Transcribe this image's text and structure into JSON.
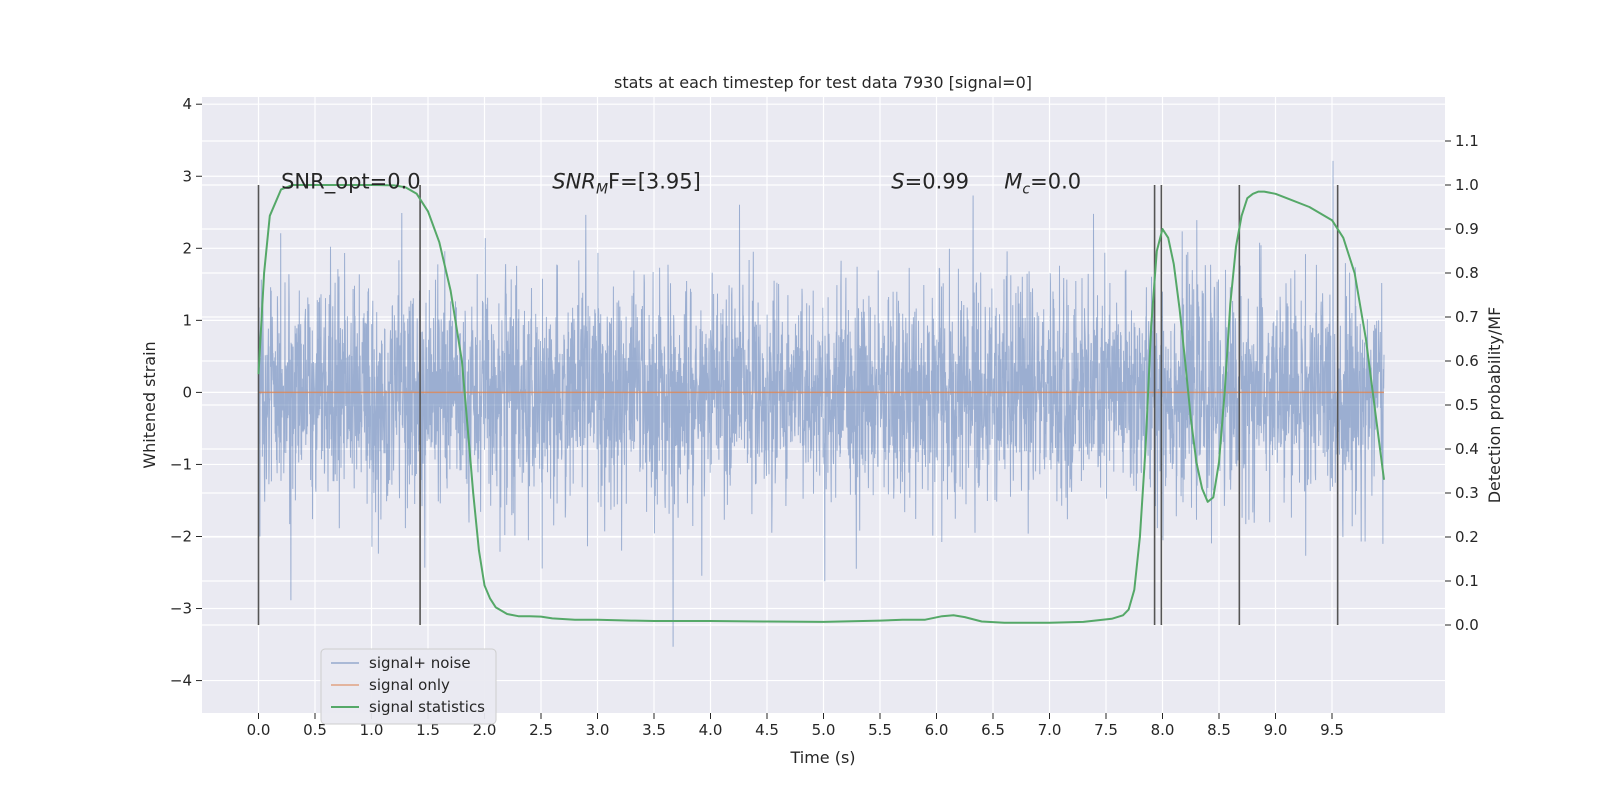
{
  "chart_data": {
    "type": "line",
    "title": "stats at each timestep for test data 7930 [signal=0]",
    "xlabel": "Time (s)",
    "ylabel": "Whitened strain",
    "y2label": "Detection probability/MF",
    "xlim": [
      -0.5,
      10.5
    ],
    "ylim": [
      -4.45,
      4.1
    ],
    "y2lim": [
      -0.2,
      1.2
    ],
    "x_ticks": [
      0.0,
      0.5,
      1.0,
      1.5,
      2.0,
      2.5,
      3.0,
      3.5,
      4.0,
      4.5,
      5.0,
      5.5,
      6.0,
      6.5,
      7.0,
      7.5,
      8.0,
      8.5,
      9.0,
      9.5
    ],
    "x_tick_labels": [
      "0.0",
      "0.5",
      "1.0",
      "1.5",
      "2.0",
      "2.5",
      "3.0",
      "3.5",
      "4.0",
      "4.5",
      "5.0",
      "5.5",
      "6.0",
      "6.5",
      "7.0",
      "7.5",
      "8.0",
      "8.5",
      "9.0",
      "9.5"
    ],
    "y_ticks": [
      4,
      3,
      2,
      1,
      0,
      -1,
      -2,
      -3,
      -4
    ],
    "y_tick_labels": [
      "4",
      "3",
      "2",
      "1",
      "0",
      "−1",
      "−2",
      "−3",
      "−4"
    ],
    "y2_ticks": [
      1.1,
      1.0,
      0.9,
      0.8,
      0.7,
      0.6,
      0.5,
      0.4,
      0.3,
      0.2,
      0.1,
      0.0
    ],
    "y2_tick_labels": [
      "1.1",
      "1.0",
      "0.9",
      "0.8",
      "0.7",
      "0.6",
      "0.5",
      "0.4",
      "0.3",
      "0.2",
      "0.1",
      "0.0"
    ],
    "grid": true,
    "legend_position": "bottom-left",
    "series": [
      {
        "name": "signal+ noise",
        "color": "#4c72b0",
        "axis": "left",
        "kind": "noise",
        "x_range": [
          0.0,
          9.96
        ],
        "approx_std": 0.75
      },
      {
        "name": "signal only",
        "color": "#dd8452",
        "axis": "left",
        "x": [
          0.0,
          9.96
        ],
        "y": [
          0.0,
          0.0
        ]
      },
      {
        "name": "signal statistics",
        "color": "#55a868",
        "axis": "right",
        "x": [
          0.0,
          0.05,
          0.1,
          0.2,
          0.3,
          0.5,
          0.8,
          1.0,
          1.2,
          1.3,
          1.4,
          1.5,
          1.6,
          1.7,
          1.8,
          1.85,
          1.9,
          1.95,
          2.0,
          2.05,
          2.1,
          2.2,
          2.3,
          2.4,
          2.5,
          2.6,
          2.8,
          3.0,
          3.3,
          3.5,
          4.0,
          4.5,
          5.0,
          5.5,
          5.7,
          5.9,
          6.05,
          6.15,
          6.25,
          6.4,
          6.6,
          7.0,
          7.3,
          7.55,
          7.65,
          7.7,
          7.75,
          7.8,
          7.85,
          7.9,
          7.95,
          8.0,
          8.05,
          8.1,
          8.15,
          8.2,
          8.25,
          8.3,
          8.35,
          8.4,
          8.45,
          8.5,
          8.55,
          8.6,
          8.65,
          8.7,
          8.75,
          8.8,
          8.85,
          8.9,
          9.0,
          9.1,
          9.3,
          9.5,
          9.6,
          9.7,
          9.8,
          9.9,
          9.96
        ],
        "y": [
          0.57,
          0.8,
          0.93,
          0.99,
          1.0,
          1.0,
          1.0,
          1.0,
          0.999,
          0.995,
          0.98,
          0.94,
          0.87,
          0.76,
          0.6,
          0.45,
          0.3,
          0.17,
          0.09,
          0.06,
          0.04,
          0.025,
          0.02,
          0.02,
          0.019,
          0.015,
          0.012,
          0.012,
          0.01,
          0.009,
          0.009,
          0.008,
          0.007,
          0.01,
          0.012,
          0.012,
          0.02,
          0.022,
          0.018,
          0.008,
          0.005,
          0.005,
          0.007,
          0.014,
          0.022,
          0.035,
          0.08,
          0.2,
          0.4,
          0.68,
          0.85,
          0.9,
          0.88,
          0.82,
          0.72,
          0.6,
          0.47,
          0.37,
          0.31,
          0.28,
          0.29,
          0.37,
          0.53,
          0.73,
          0.86,
          0.93,
          0.97,
          0.98,
          0.985,
          0.985,
          0.98,
          0.97,
          0.95,
          0.92,
          0.88,
          0.8,
          0.65,
          0.45,
          0.33
        ]
      }
    ],
    "vlines": [
      0.0,
      1.43,
      7.93,
      7.99,
      8.68,
      9.55
    ],
    "annotations": [
      {
        "text": "SNR_opt=0.0",
        "x": 0.2,
        "y": 2.93
      },
      {
        "text_main": "SNR",
        "text_sub": "M",
        "text_tail": "F=[3.95]",
        "x": 2.6,
        "y": 2.93
      },
      {
        "text_main": "S",
        "text_tail": "=0.99",
        "x": 5.6,
        "y": 2.93
      },
      {
        "text_main": "M",
        "text_sub": "c",
        "text_tail": "=0.0",
        "x": 6.6,
        "y": 2.93
      }
    ]
  }
}
